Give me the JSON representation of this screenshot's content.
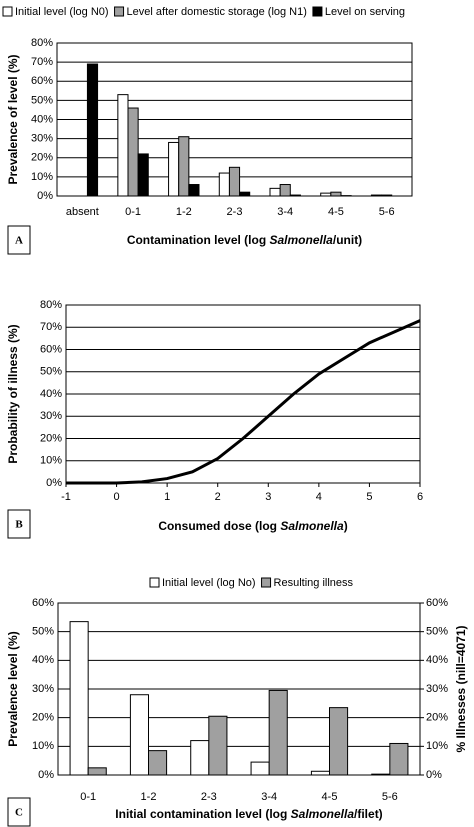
{
  "chart_data": [
    {
      "type": "bar",
      "panel_label": "A",
      "ylabel": "Prevalence of level (%)",
      "xlabel": [
        "Contamination level (log ",
        "Salmonella",
        "/unit)"
      ],
      "categories": [
        "absent",
        "0-1",
        "1-2",
        "2-3",
        "3-4",
        "4-5",
        "5-6"
      ],
      "series": [
        {
          "name": "Initial level (log N0)",
          "color": "#ffffff",
          "values": [
            0,
            53,
            28,
            12,
            4,
            1.5,
            0.5
          ]
        },
        {
          "name": "Level after domestic storage (log N1)",
          "color": "#a0a0a0",
          "values": [
            0,
            46,
            31,
            15,
            6,
            2,
            0.5
          ]
        },
        {
          "name": "Level on serving",
          "color": "#000000",
          "values": [
            69,
            22,
            6,
            2,
            0.5,
            0.2,
            0
          ]
        }
      ],
      "ylim": [
        0,
        80
      ],
      "yticks": [
        {
          "value": 0,
          "label": "0%"
        },
        {
          "value": 10,
          "label": "10%"
        },
        {
          "value": 20,
          "label": "20%"
        },
        {
          "value": 30,
          "label": "30%"
        },
        {
          "value": 40,
          "label": "40%"
        },
        {
          "value": 50,
          "label": "50%"
        },
        {
          "value": 60,
          "label": "60%"
        },
        {
          "value": 70,
          "label": "70%"
        },
        {
          "value": 80,
          "label": "80%"
        }
      ],
      "grid": true,
      "legend": "top"
    },
    {
      "type": "line",
      "panel_label": "B",
      "ylabel": "Probability of illness (%)",
      "xlabel": [
        "Consumed dose (log ",
        "Salmonella",
        ")"
      ],
      "x": [
        -1,
        0,
        0.5,
        1,
        1.5,
        2,
        2.5,
        3,
        3.5,
        4,
        4.5,
        5,
        5.5,
        6
      ],
      "series": [
        {
          "color": "#000000",
          "values": [
            0,
            0,
            0.5,
            2,
            5,
            11,
            20,
            30,
            40,
            49,
            56,
            63,
            68,
            73
          ]
        }
      ],
      "xlim": [
        -1,
        6
      ],
      "xticks": [
        -1,
        0,
        1,
        2,
        3,
        4,
        5,
        6
      ],
      "ylim": [
        0,
        80
      ],
      "yticks": [
        {
          "value": 0,
          "label": "0%"
        },
        {
          "value": 10,
          "label": "10%"
        },
        {
          "value": 20,
          "label": "20%"
        },
        {
          "value": 30,
          "label": "30%"
        },
        {
          "value": 40,
          "label": "40%"
        },
        {
          "value": 50,
          "label": "50%"
        },
        {
          "value": 60,
          "label": "60%"
        },
        {
          "value": 70,
          "label": "70%"
        },
        {
          "value": 80,
          "label": "80%"
        }
      ],
      "grid": true
    },
    {
      "type": "bar",
      "panel_label": "C",
      "ylabel": "Prevalence level (%)",
      "y2label": "% Illnesses (nill=4071)",
      "xlabel": [
        "Initial contamination level (log ",
        "Salmonella",
        "/filet)"
      ],
      "categories": [
        "0-1",
        "1-2",
        "2-3",
        "3-4",
        "4-5",
        "5-6"
      ],
      "series": [
        {
          "name": "Initial level (log No)",
          "color": "#ffffff",
          "values": [
            53.5,
            28,
            12,
            4.5,
            1.3,
            0.3
          ]
        },
        {
          "name": "Resulting illness",
          "color": "#a0a0a0",
          "axis": "y2",
          "values": [
            2.5,
            8.5,
            20.5,
            29.5,
            23.5,
            11
          ]
        }
      ],
      "ylim": [
        0,
        60
      ],
      "yticks": [
        {
          "value": 0,
          "label": "0%"
        },
        {
          "value": 10,
          "label": "10%"
        },
        {
          "value": 20,
          "label": "20%"
        },
        {
          "value": 30,
          "label": "30%"
        },
        {
          "value": 40,
          "label": "40%"
        },
        {
          "value": 50,
          "label": "50%"
        },
        {
          "value": 60,
          "label": "60%"
        }
      ],
      "y2lim": [
        0,
        60
      ],
      "y2ticks": [
        {
          "value": 0,
          "label": "0%"
        },
        {
          "value": 10,
          "label": "10%"
        },
        {
          "value": 20,
          "label": "20%"
        },
        {
          "value": 30,
          "label": "30%"
        },
        {
          "value": 40,
          "label": "40%"
        },
        {
          "value": 50,
          "label": "50%"
        },
        {
          "value": 60,
          "label": "60%"
        }
      ],
      "grid": true,
      "legend": "top"
    }
  ]
}
